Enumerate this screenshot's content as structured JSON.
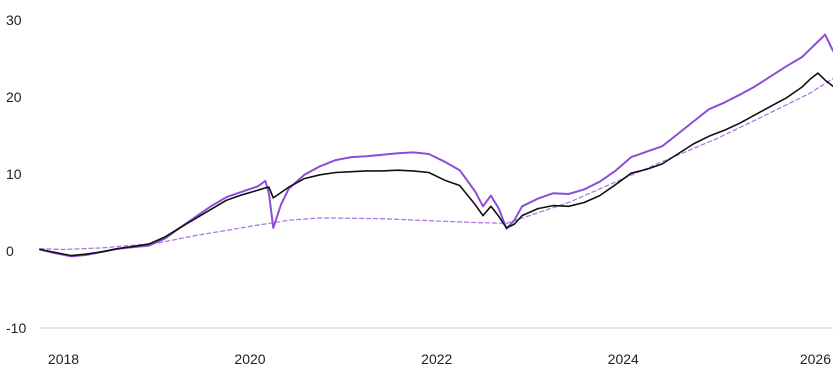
{
  "chart_data": {
    "type": "line",
    "title": "",
    "xlabel": "",
    "ylabel": "",
    "xlim": [
      "2017-10-01",
      "2026-04-01"
    ],
    "ylim": [
      -10,
      30
    ],
    "x_ticks": [
      "2018",
      "2020",
      "2022",
      "2024",
      "2026"
    ],
    "y_ticks": [
      "30",
      "20",
      "10",
      "0",
      "-10"
    ],
    "grid": false,
    "legend": "none",
    "series": [
      {
        "color": "#111111",
        "style": "solid",
        "points": [
          [
            "2017-10-01",
            0.2
          ],
          [
            "2017-12-01",
            -0.2
          ],
          [
            "2018-02-01",
            -0.6
          ],
          [
            "2018-04-01",
            -0.4
          ],
          [
            "2018-06-01",
            -0.1
          ],
          [
            "2018-08-01",
            0.3
          ],
          [
            "2018-10-01",
            0.6
          ],
          [
            "2018-12-01",
            0.9
          ],
          [
            "2019-02-01",
            1.8
          ],
          [
            "2019-04-01",
            3.0
          ],
          [
            "2019-06-01",
            4.2
          ],
          [
            "2019-08-01",
            5.4
          ],
          [
            "2019-10-01",
            6.6
          ],
          [
            "2019-12-01",
            7.3
          ],
          [
            "2020-02-01",
            7.9
          ],
          [
            "2020-03-01",
            8.2
          ],
          [
            "2020-03-15",
            8.3
          ],
          [
            "2020-04-01",
            6.9
          ],
          [
            "2020-06-01",
            8.3
          ],
          [
            "2020-08-01",
            9.4
          ],
          [
            "2020-10-01",
            9.9
          ],
          [
            "2020-12-01",
            10.2
          ],
          [
            "2021-02-01",
            10.3
          ],
          [
            "2021-04-01",
            10.4
          ],
          [
            "2021-06-01",
            10.4
          ],
          [
            "2021-08-01",
            10.5
          ],
          [
            "2021-10-01",
            10.4
          ],
          [
            "2021-12-01",
            10.2
          ],
          [
            "2022-02-01",
            9.2
          ],
          [
            "2022-04-01",
            8.5
          ],
          [
            "2022-06-01",
            6.0
          ],
          [
            "2022-07-01",
            4.6
          ],
          [
            "2022-08-01",
            5.8
          ],
          [
            "2022-09-01",
            4.5
          ],
          [
            "2022-10-01",
            3.0
          ],
          [
            "2022-11-01",
            3.5
          ],
          [
            "2022-12-01",
            4.6
          ],
          [
            "2023-02-01",
            5.5
          ],
          [
            "2023-04-01",
            5.9
          ],
          [
            "2023-06-01",
            5.8
          ],
          [
            "2023-08-01",
            6.3
          ],
          [
            "2023-10-01",
            7.2
          ],
          [
            "2023-12-01",
            8.6
          ],
          [
            "2024-02-01",
            10.1
          ],
          [
            "2024-04-01",
            10.6
          ],
          [
            "2024-06-01",
            11.3
          ],
          [
            "2024-08-01",
            12.6
          ],
          [
            "2024-10-01",
            13.9
          ],
          [
            "2024-12-01",
            14.9
          ],
          [
            "2025-02-01",
            15.7
          ],
          [
            "2025-04-01",
            16.6
          ],
          [
            "2025-06-01",
            17.7
          ],
          [
            "2025-08-01",
            18.8
          ],
          [
            "2025-10-01",
            19.9
          ],
          [
            "2025-12-01",
            21.3
          ],
          [
            "2026-01-01",
            22.3
          ],
          [
            "2026-02-01",
            23.1
          ],
          [
            "2026-03-01",
            22.2
          ],
          [
            "2026-04-01",
            21.4
          ]
        ]
      },
      {
        "color": "#8a4fd6",
        "style": "solid",
        "points": [
          [
            "2017-10-01",
            0.2
          ],
          [
            "2017-12-01",
            -0.3
          ],
          [
            "2018-02-01",
            -0.7
          ],
          [
            "2018-04-01",
            -0.5
          ],
          [
            "2018-06-01",
            -0.1
          ],
          [
            "2018-08-01",
            0.3
          ],
          [
            "2018-10-01",
            0.5
          ],
          [
            "2018-12-01",
            0.7
          ],
          [
            "2019-02-01",
            1.6
          ],
          [
            "2019-04-01",
            3.0
          ],
          [
            "2019-06-01",
            4.4
          ],
          [
            "2019-08-01",
            5.8
          ],
          [
            "2019-10-01",
            7.0
          ],
          [
            "2019-12-01",
            7.7
          ],
          [
            "2020-02-01",
            8.4
          ],
          [
            "2020-03-01",
            9.1
          ],
          [
            "2020-03-15",
            7.5
          ],
          [
            "2020-04-01",
            3.0
          ],
          [
            "2020-05-01",
            6.0
          ],
          [
            "2020-06-01",
            8.1
          ],
          [
            "2020-08-01",
            9.9
          ],
          [
            "2020-10-01",
            11.0
          ],
          [
            "2020-12-01",
            11.8
          ],
          [
            "2021-02-01",
            12.2
          ],
          [
            "2021-04-01",
            12.3
          ],
          [
            "2021-06-01",
            12.5
          ],
          [
            "2021-08-01",
            12.7
          ],
          [
            "2021-10-01",
            12.8
          ],
          [
            "2021-12-01",
            12.6
          ],
          [
            "2022-02-01",
            11.6
          ],
          [
            "2022-04-01",
            10.5
          ],
          [
            "2022-06-01",
            7.7
          ],
          [
            "2022-07-01",
            5.8
          ],
          [
            "2022-08-01",
            7.2
          ],
          [
            "2022-09-01",
            5.5
          ],
          [
            "2022-10-01",
            2.9
          ],
          [
            "2022-11-01",
            4.0
          ],
          [
            "2022-12-01",
            5.8
          ],
          [
            "2023-02-01",
            6.8
          ],
          [
            "2023-04-01",
            7.5
          ],
          [
            "2023-06-01",
            7.4
          ],
          [
            "2023-08-01",
            8.0
          ],
          [
            "2023-10-01",
            9.0
          ],
          [
            "2023-12-01",
            10.4
          ],
          [
            "2024-02-01",
            12.2
          ],
          [
            "2024-04-01",
            12.9
          ],
          [
            "2024-06-01",
            13.6
          ],
          [
            "2024-08-01",
            15.2
          ],
          [
            "2024-10-01",
            16.8
          ],
          [
            "2024-12-01",
            18.4
          ],
          [
            "2025-02-01",
            19.3
          ],
          [
            "2025-04-01",
            20.3
          ],
          [
            "2025-06-01",
            21.4
          ],
          [
            "2025-08-01",
            22.7
          ],
          [
            "2025-10-01",
            24.0
          ],
          [
            "2025-12-01",
            25.2
          ],
          [
            "2026-01-01",
            26.2
          ],
          [
            "2026-02-01",
            27.2
          ],
          [
            "2026-03-01",
            28.1
          ],
          [
            "2026-04-01",
            26.0
          ]
        ]
      },
      {
        "color": "#b07be0",
        "style": "dashed",
        "points": [
          [
            "2017-10-01",
            0.3
          ],
          [
            "2018-01-01",
            0.2
          ],
          [
            "2018-06-01",
            0.4
          ],
          [
            "2019-01-01",
            1.0
          ],
          [
            "2019-06-01",
            2.0
          ],
          [
            "2020-01-01",
            3.2
          ],
          [
            "2020-06-01",
            4.0
          ],
          [
            "2020-10-01",
            4.3
          ],
          [
            "2021-06-01",
            4.2
          ],
          [
            "2022-01-01",
            3.9
          ],
          [
            "2022-06-01",
            3.7
          ],
          [
            "2022-10-01",
            3.6
          ],
          [
            "2023-06-01",
            6.3
          ],
          [
            "2024-01-01",
            9.4
          ],
          [
            "2024-06-01",
            11.6
          ],
          [
            "2025-01-01",
            14.6
          ],
          [
            "2025-06-01",
            17.0
          ],
          [
            "2026-01-01",
            20.5
          ],
          [
            "2026-04-01",
            22.4
          ]
        ]
      }
    ]
  }
}
